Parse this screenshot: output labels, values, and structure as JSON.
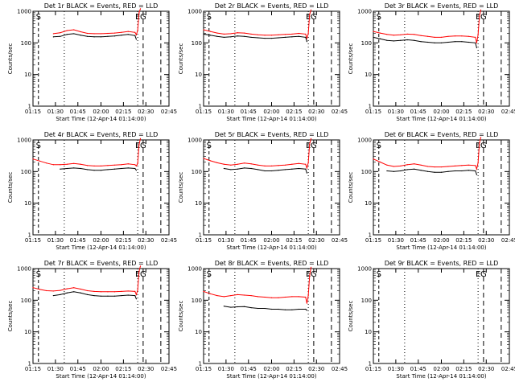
{
  "figure": {
    "x_label": "Start Time (12-Apr-14 01:14:00)",
    "y_label": "Counts/sec",
    "y_ticks": [
      "1",
      "10",
      "100",
      "1000"
    ],
    "x_ticks": [
      "01:15",
      "01:30",
      "01:45",
      "02:00",
      "02:15",
      "02:30",
      "02:45"
    ],
    "colors": {
      "events": "#000000",
      "lld": "#ff0000"
    }
  },
  "chart_data": [
    {
      "type": "line",
      "title": "Det 1r BLACK = Events, RED = LLD",
      "xlabel": "Start Time (12-Apr-14 01:14:00)",
      "ylabel": "Counts/sec",
      "xlim": [
        0,
        100
      ],
      "ylim": [
        1,
        1000
      ],
      "y_scale": "log",
      "grid": false,
      "markers": {
        "S": 4,
        "E": 77,
        "G": 81
      },
      "series": [
        {
          "name": "Events",
          "color": "#000000",
          "x": [
            15,
            20,
            25,
            30,
            35,
            40,
            45,
            50,
            55,
            60,
            65,
            70,
            75,
            76
          ],
          "y": [
            155,
            160,
            185,
            195,
            175,
            160,
            155,
            155,
            160,
            165,
            175,
            185,
            170,
            130
          ]
        },
        {
          "name": "LLD",
          "color": "#ff0000",
          "x": [
            15,
            20,
            25,
            30,
            35,
            40,
            45,
            50,
            55,
            60,
            65,
            70,
            75,
            76,
            77,
            78,
            79
          ],
          "y": [
            195,
            210,
            245,
            260,
            225,
            200,
            195,
            195,
            200,
            205,
            215,
            230,
            215,
            180,
            250,
            900,
            1200
          ]
        }
      ]
    },
    {
      "type": "line",
      "title": "Det 2r BLACK = Events, RED = LLD",
      "xlabel": "Start Time (12-Apr-14 01:14:00)",
      "ylabel": "Counts/sec",
      "xlim": [
        0,
        100
      ],
      "ylim": [
        1,
        1000
      ],
      "y_scale": "log",
      "grid": false,
      "markers": {
        "S": 4,
        "E": 77,
        "G": 81
      },
      "series": [
        {
          "name": "Events",
          "color": "#000000",
          "x": [
            0,
            5,
            10,
            15,
            20,
            25,
            30,
            35,
            40,
            45,
            50,
            55,
            60,
            65,
            70,
            75,
            76
          ],
          "y": [
            190,
            175,
            160,
            150,
            155,
            165,
            160,
            150,
            145,
            140,
            140,
            145,
            150,
            155,
            160,
            150,
            110
          ]
        },
        {
          "name": "LLD",
          "color": "#ff0000",
          "x": [
            0,
            5,
            10,
            15,
            20,
            25,
            30,
            35,
            40,
            45,
            50,
            55,
            60,
            65,
            70,
            75,
            76,
            77,
            78,
            79
          ],
          "y": [
            260,
            230,
            205,
            190,
            195,
            210,
            205,
            190,
            180,
            175,
            175,
            180,
            185,
            190,
            200,
            190,
            140,
            200,
            800,
            1100
          ]
        }
      ]
    },
    {
      "type": "line",
      "title": "Det 3r BLACK = Events, RED = LLD",
      "xlabel": "Start Time (12-Apr-14 01:14:00)",
      "ylabel": "Counts/sec",
      "xlim": [
        0,
        100
      ],
      "ylim": [
        1,
        1000
      ],
      "y_scale": "log",
      "grid": false,
      "markers": {
        "S": 4,
        "E": 77,
        "G": 81
      },
      "series": [
        {
          "name": "Events",
          "color": "#000000",
          "x": [
            0,
            5,
            10,
            15,
            20,
            25,
            30,
            35,
            40,
            45,
            50,
            55,
            60,
            65,
            70,
            75,
            76
          ],
          "y": [
            150,
            135,
            120,
            115,
            120,
            125,
            120,
            110,
            105,
            100,
            100,
            105,
            110,
            110,
            105,
            100,
            70
          ]
        },
        {
          "name": "LLD",
          "color": "#ff0000",
          "x": [
            0,
            5,
            10,
            15,
            20,
            25,
            30,
            35,
            40,
            45,
            50,
            55,
            60,
            65,
            70,
            75,
            76,
            77,
            78,
            79
          ],
          "y": [
            230,
            205,
            185,
            175,
            180,
            190,
            185,
            170,
            160,
            150,
            150,
            160,
            165,
            165,
            160,
            150,
            100,
            180,
            700,
            1100
          ]
        }
      ]
    },
    {
      "type": "line",
      "title": "Det 4r BLACK = Events, RED = LLD",
      "xlabel": "Start Time (12-Apr-14 01:14:00)",
      "ylabel": "Counts/sec",
      "xlim": [
        0,
        100
      ],
      "ylim": [
        1,
        1000
      ],
      "y_scale": "log",
      "grid": false,
      "markers": {
        "S": 4,
        "E": 77,
        "G": 81
      },
      "series": [
        {
          "name": "Events",
          "color": "#000000",
          "x": [
            20,
            25,
            30,
            35,
            40,
            45,
            50,
            55,
            60,
            65,
            70,
            75,
            76
          ],
          "y": [
            120,
            125,
            130,
            125,
            115,
            110,
            110,
            115,
            120,
            125,
            130,
            125,
            110
          ]
        },
        {
          "name": "LLD",
          "color": "#ff0000",
          "x": [
            0,
            5,
            10,
            15,
            20,
            25,
            30,
            35,
            40,
            45,
            50,
            55,
            60,
            65,
            70,
            75,
            76,
            77,
            78,
            79
          ],
          "y": [
            250,
            215,
            185,
            165,
            165,
            170,
            180,
            170,
            155,
            150,
            150,
            155,
            160,
            165,
            175,
            165,
            150,
            180,
            700,
            1100
          ]
        }
      ]
    },
    {
      "type": "line",
      "title": "Det 5r BLACK = Events, RED = LLD",
      "xlabel": "Start Time (12-Apr-14 01:14:00)",
      "ylabel": "Counts/sec",
      "xlim": [
        0,
        100
      ],
      "ylim": [
        1,
        1000
      ],
      "y_scale": "log",
      "grid": false,
      "markers": {
        "S": 4,
        "E": 77,
        "G": 81
      },
      "series": [
        {
          "name": "Events",
          "color": "#000000",
          "x": [
            15,
            20,
            25,
            30,
            35,
            40,
            45,
            50,
            55,
            60,
            65,
            70,
            75,
            76
          ],
          "y": [
            125,
            115,
            120,
            130,
            125,
            115,
            105,
            105,
            110,
            115,
            120,
            125,
            120,
            90
          ]
        },
        {
          "name": "LLD",
          "color": "#ff0000",
          "x": [
            0,
            5,
            10,
            15,
            20,
            25,
            30,
            35,
            40,
            45,
            50,
            55,
            60,
            65,
            70,
            75,
            76,
            77,
            78,
            79
          ],
          "y": [
            260,
            220,
            190,
            170,
            160,
            170,
            185,
            175,
            160,
            150,
            150,
            155,
            160,
            170,
            180,
            170,
            130,
            190,
            750,
            1100
          ]
        }
      ]
    },
    {
      "type": "line",
      "title": "Det 6r BLACK = Events, RED = LLD",
      "xlabel": "Start Time (12-Apr-14 01:14:00)",
      "ylabel": "Counts/sec",
      "xlim": [
        0,
        100
      ],
      "ylim": [
        1,
        1000
      ],
      "y_scale": "log",
      "grid": false,
      "markers": {
        "S": 4,
        "E": 77,
        "G": 81
      },
      "series": [
        {
          "name": "Events",
          "color": "#000000",
          "x": [
            10,
            15,
            20,
            25,
            30,
            35,
            40,
            45,
            50,
            55,
            60,
            65,
            70,
            75,
            76
          ],
          "y": [
            105,
            100,
            105,
            115,
            120,
            110,
            100,
            95,
            95,
            100,
            105,
            105,
            110,
            105,
            80
          ]
        },
        {
          "name": "LLD",
          "color": "#ff0000",
          "x": [
            0,
            5,
            10,
            15,
            20,
            25,
            30,
            35,
            40,
            45,
            50,
            55,
            60,
            65,
            70,
            75,
            76,
            77,
            78,
            79
          ],
          "y": [
            250,
            200,
            160,
            145,
            150,
            165,
            175,
            160,
            145,
            140,
            140,
            145,
            150,
            155,
            160,
            155,
            120,
            190,
            800,
            1200
          ]
        }
      ]
    },
    {
      "type": "line",
      "title": "Det 7r BLACK = Events, RED = LLD",
      "xlabel": "Start Time (12-Apr-14 01:14:00)",
      "ylabel": "Counts/sec",
      "xlim": [
        0,
        100
      ],
      "ylim": [
        1,
        1000
      ],
      "y_scale": "log",
      "grid": false,
      "markers": {
        "S": 4,
        "E": 77,
        "G": 81
      },
      "series": [
        {
          "name": "Events",
          "color": "#000000",
          "x": [
            15,
            20,
            25,
            30,
            35,
            40,
            45,
            50,
            55,
            60,
            65,
            70,
            75,
            76
          ],
          "y": [
            140,
            150,
            170,
            185,
            170,
            150,
            140,
            135,
            135,
            135,
            140,
            145,
            140,
            110
          ]
        },
        {
          "name": "LLD",
          "color": "#ff0000",
          "x": [
            0,
            5,
            10,
            15,
            20,
            25,
            30,
            35,
            40,
            45,
            50,
            55,
            60,
            65,
            70,
            75,
            76,
            77,
            78,
            79
          ],
          "y": [
            250,
            220,
            200,
            195,
            205,
            230,
            250,
            225,
            200,
            190,
            185,
            185,
            185,
            190,
            195,
            190,
            150,
            210,
            800,
            1200
          ]
        }
      ]
    },
    {
      "type": "line",
      "title": "Det 8r BLACK = Events, RED = LLD",
      "xlabel": "Start Time (12-Apr-14 01:14:00)",
      "ylabel": "Counts/sec",
      "xlim": [
        0,
        100
      ],
      "ylim": [
        1,
        1000
      ],
      "y_scale": "log",
      "grid": false,
      "markers": {
        "S": 4,
        "E": 77,
        "G": 81
      },
      "series": [
        {
          "name": "Events",
          "color": "#000000",
          "x": [
            15,
            20,
            25,
            30,
            35,
            40,
            45,
            50,
            55,
            60,
            65,
            70,
            75,
            76
          ],
          "y": [
            65,
            60,
            62,
            63,
            58,
            55,
            55,
            52,
            52,
            50,
            50,
            52,
            52,
            48
          ]
        },
        {
          "name": "LLD",
          "color": "#ff0000",
          "x": [
            0,
            5,
            10,
            15,
            20,
            25,
            30,
            35,
            40,
            45,
            50,
            55,
            60,
            65,
            70,
            75,
            76,
            77,
            78,
            79
          ],
          "y": [
            190,
            160,
            140,
            130,
            140,
            150,
            145,
            140,
            130,
            125,
            120,
            120,
            125,
            130,
            130,
            125,
            80,
            140,
            600,
            1100
          ]
        }
      ]
    },
    {
      "type": "line",
      "title": "Det 9r BLACK = Events, RED = LLD",
      "xlabel": "Start Time (12-Apr-14 01:14:00)",
      "ylabel": "Counts/sec",
      "xlim": [
        0,
        100
      ],
      "ylim": [
        1,
        1000
      ],
      "y_scale": "log",
      "grid": false,
      "markers": {
        "S": 4,
        "E": 77,
        "G": 81
      },
      "series": []
    }
  ]
}
